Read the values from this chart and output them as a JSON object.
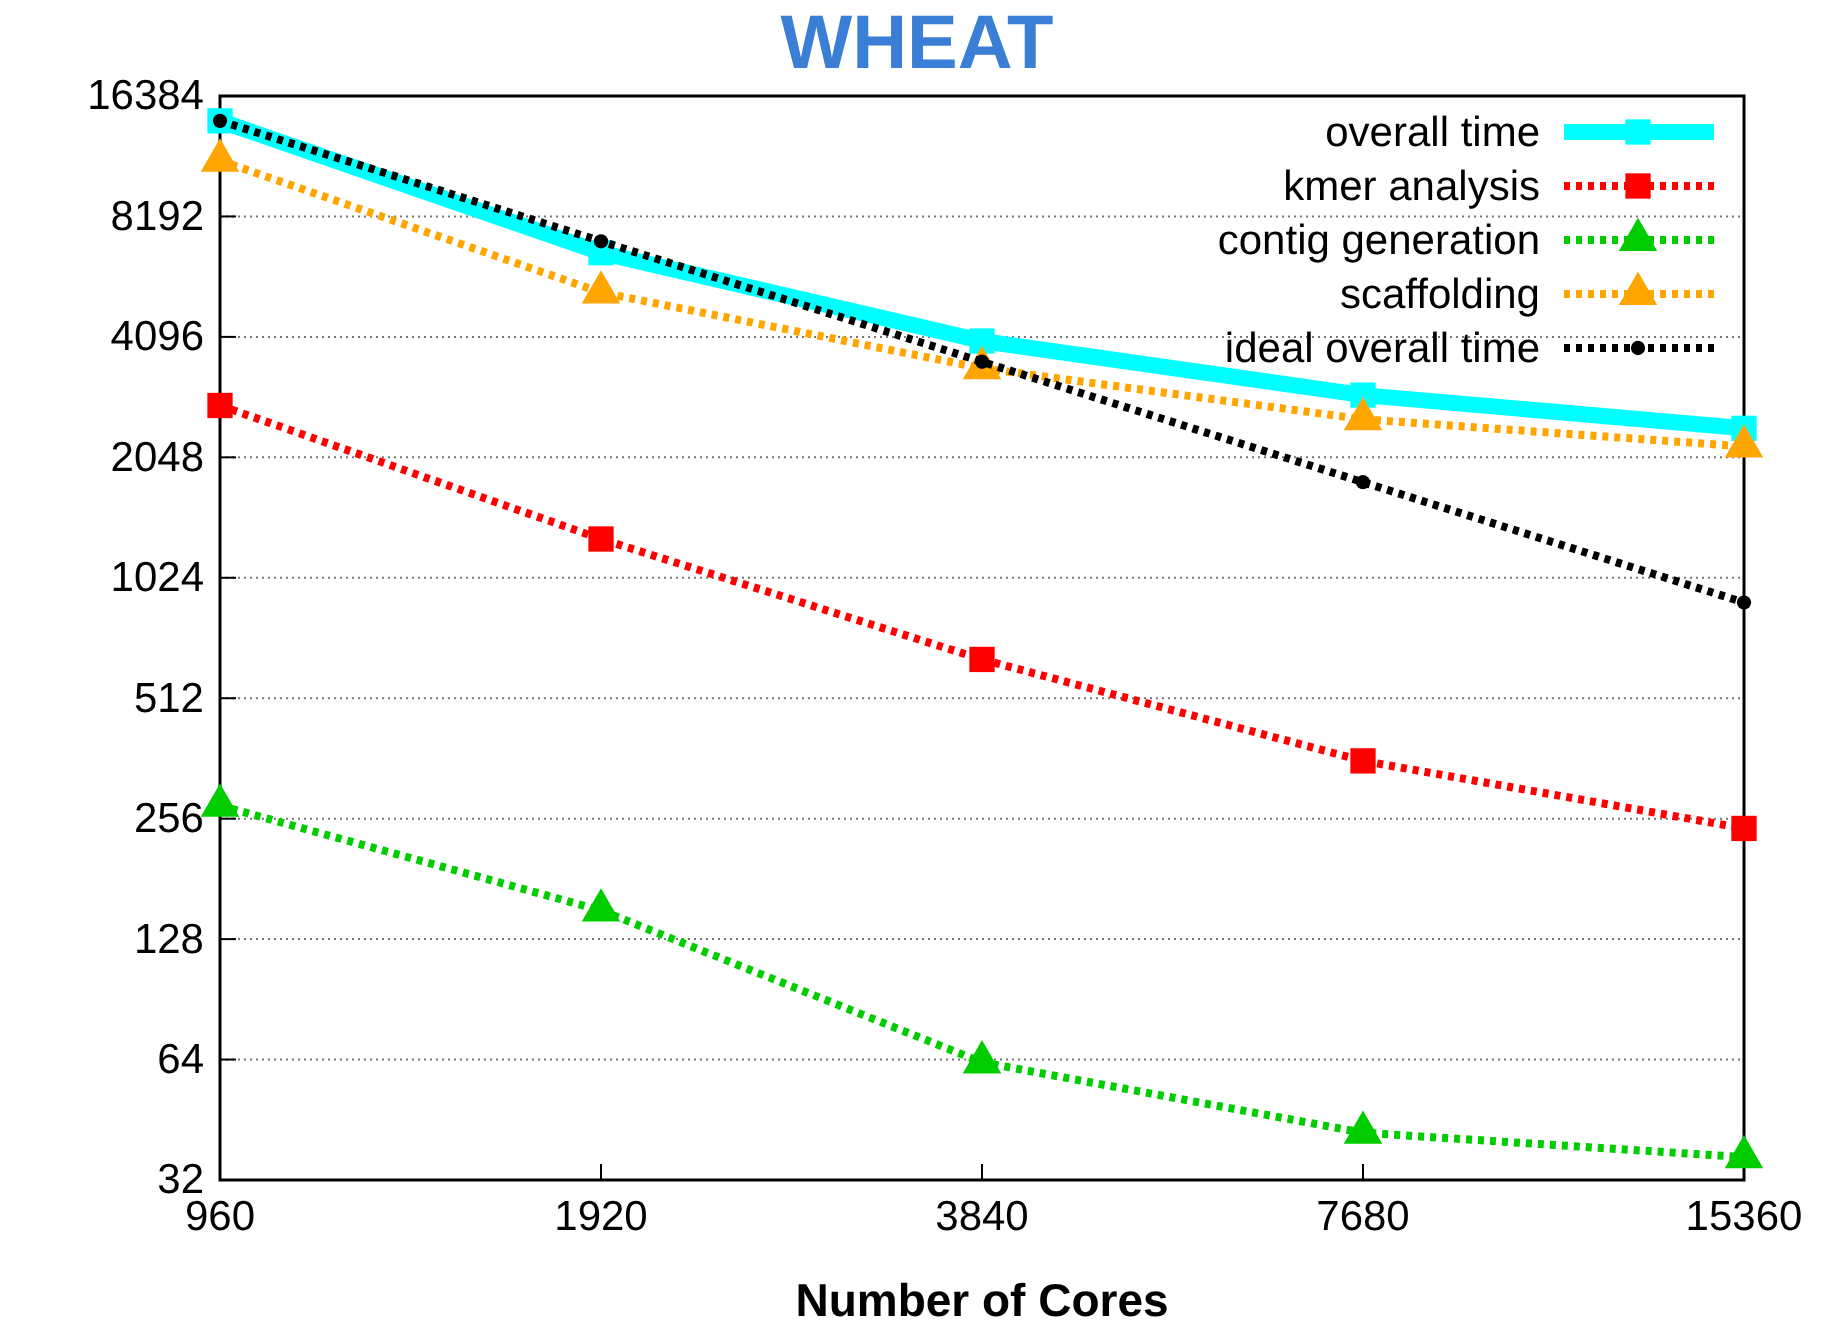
{
  "chart_data": {
    "type": "line",
    "title": "WHEAT",
    "xlabel": "Number of Cores",
    "log": "xy",
    "grid": "y",
    "legend": "top right",
    "x": [
      960,
      1920,
      3840,
      7680,
      15360
    ],
    "xlim": [
      960,
      15360
    ],
    "xticks": [
      960,
      1920,
      3840,
      7680,
      15360
    ],
    "ylim": [
      32,
      16384
    ],
    "yticks": [
      32,
      64,
      128,
      256,
      512,
      1024,
      2048,
      4096,
      8192,
      16384
    ],
    "series": [
      {
        "name": "overall time",
        "color": "#00ffff",
        "marker": "square",
        "line_style": "solid",
        "values": [
          14200,
          6650,
          4000,
          2930,
          2420
        ]
      },
      {
        "name": "kmer analysis",
        "color": "#ff0000",
        "marker": "square",
        "line_style": "dotted",
        "values": [
          2760,
          1280,
          640,
          357,
          242
        ]
      },
      {
        "name": "contig generation",
        "color": "#00cc00",
        "marker": "triangle",
        "line_style": "dotted",
        "values": [
          276,
          151,
          63,
          42,
          36.5
        ]
      },
      {
        "name": "scaffolding",
        "color": "#ffa500",
        "marker": "triangle",
        "line_style": "dotted",
        "values": [
          11300,
          5290,
          3420,
          2550,
          2180
        ]
      },
      {
        "name": "ideal overall time",
        "color": "#000000",
        "marker": "circle",
        "line_style": "dotted",
        "values": [
          14200,
          7100,
          3550,
          1775,
          888
        ]
      }
    ]
  }
}
